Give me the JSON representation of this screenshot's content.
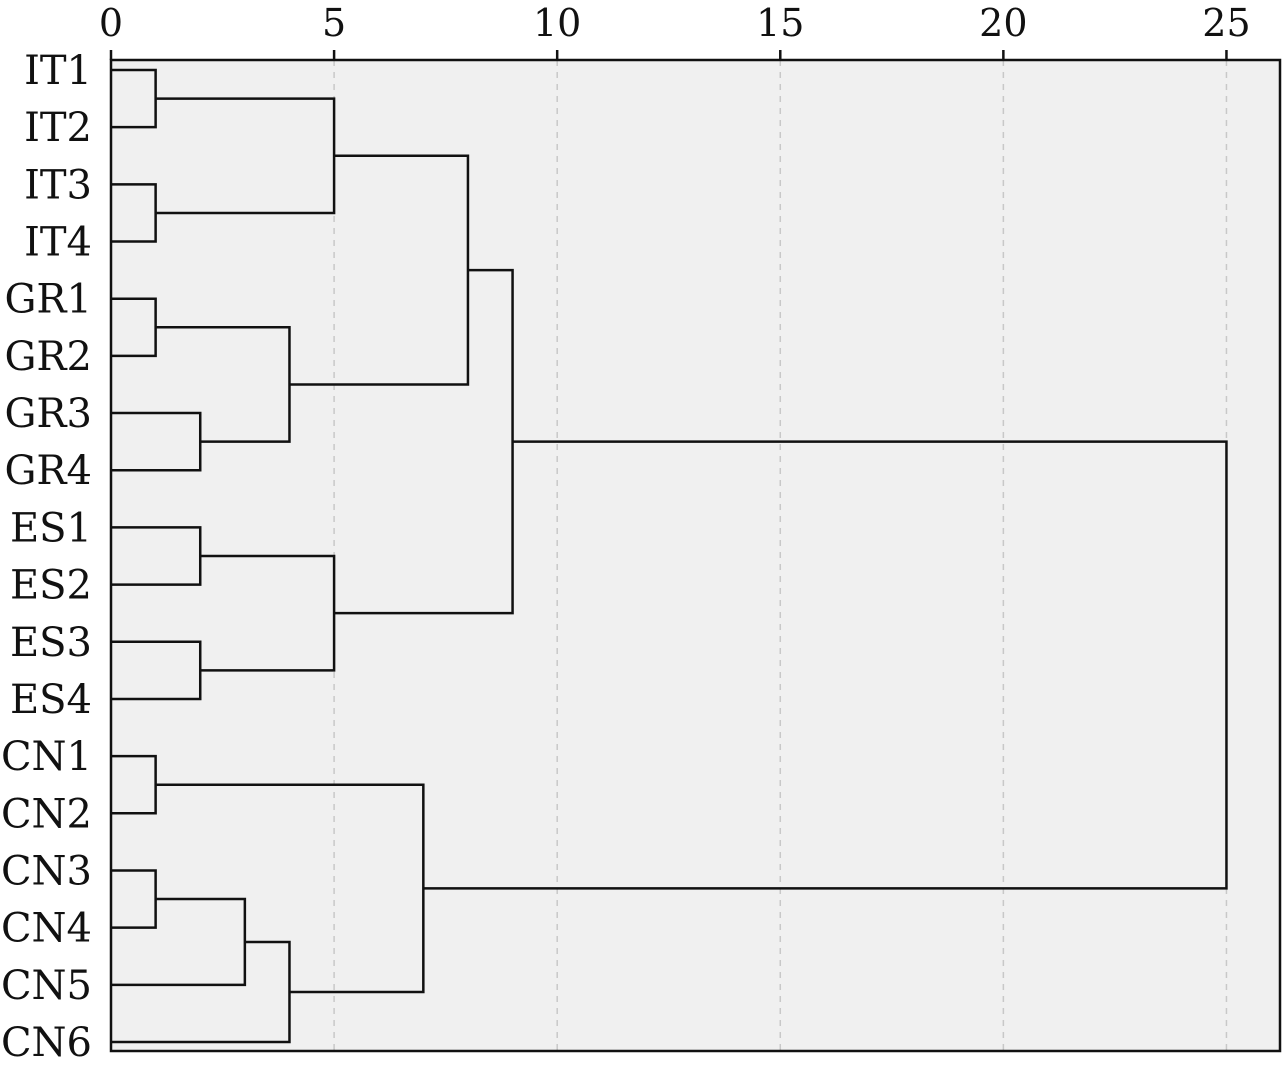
{
  "chart_data": {
    "type": "dendrogram",
    "orientation": "horizontal",
    "title": "",
    "xlabel": "",
    "ylabel": "",
    "xlim": [
      0,
      26.2
    ],
    "x_ticks": [
      0,
      5,
      10,
      15,
      20,
      25
    ],
    "grid": "vertical dashed",
    "leaves": [
      "IT1",
      "IT2",
      "IT3",
      "IT4",
      "GR1",
      "GR2",
      "GR3",
      "GR4",
      "ES1",
      "ES2",
      "ES3",
      "ES4",
      "CN1",
      "CN2",
      "CN3",
      "CN4",
      "CN5",
      "CN6"
    ],
    "merges": [
      {
        "a": "IT1",
        "b": "IT2",
        "height": 1,
        "id": "m1"
      },
      {
        "a": "IT3",
        "b": "IT4",
        "height": 1,
        "id": "m2"
      },
      {
        "a": "m1",
        "b": "m2",
        "height": 5,
        "id": "m3"
      },
      {
        "a": "GR1",
        "b": "GR2",
        "height": 1,
        "id": "m4"
      },
      {
        "a": "GR3",
        "b": "GR4",
        "height": 2,
        "id": "m5"
      },
      {
        "a": "m4",
        "b": "m5",
        "height": 4,
        "id": "m6"
      },
      {
        "a": "m3",
        "b": "m6",
        "height": 8,
        "id": "m7"
      },
      {
        "a": "ES1",
        "b": "ES2",
        "height": 2,
        "id": "m8"
      },
      {
        "a": "ES3",
        "b": "ES4",
        "height": 2,
        "id": "m9"
      },
      {
        "a": "m8",
        "b": "m9",
        "height": 5,
        "id": "m10"
      },
      {
        "a": "m7",
        "b": "m10",
        "height": 9,
        "id": "m11"
      },
      {
        "a": "CN1",
        "b": "CN2",
        "height": 1,
        "id": "m12"
      },
      {
        "a": "CN3",
        "b": "CN4",
        "height": 1,
        "id": "m13"
      },
      {
        "a": "m13",
        "b": "CN5",
        "height": 3,
        "id": "m14"
      },
      {
        "a": "m14",
        "b": "CN6",
        "height": 4,
        "id": "m15"
      },
      {
        "a": "m12",
        "b": "m15",
        "height": 7,
        "id": "m16"
      },
      {
        "a": "m11",
        "b": "m16",
        "height": 25,
        "id": "m17"
      }
    ]
  },
  "colors": {
    "plot_background": "#f0f0f0",
    "link": "#111111",
    "grid": "#c8c8c8",
    "axis": "#111111"
  }
}
